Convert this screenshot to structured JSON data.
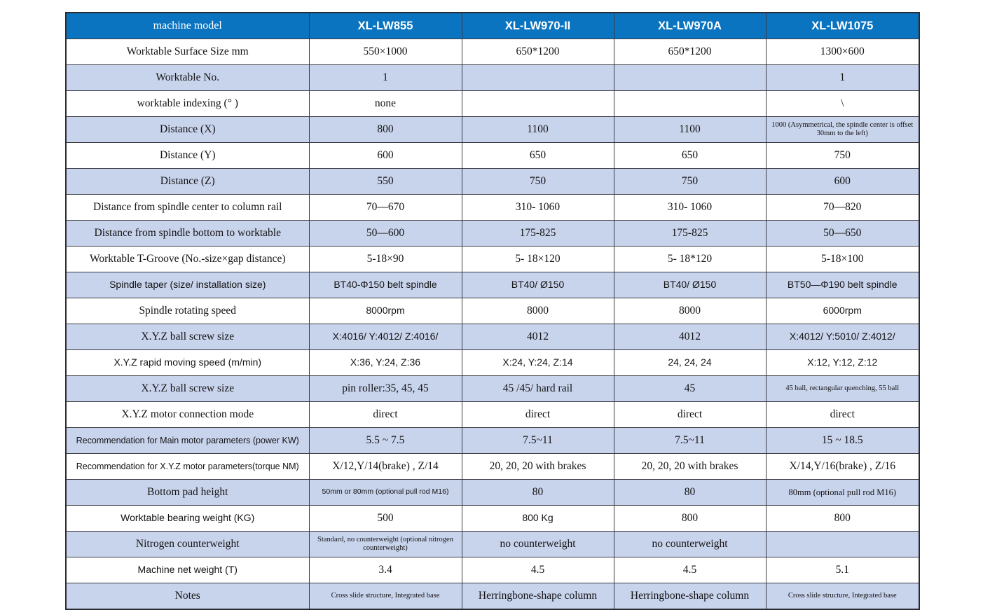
{
  "colors": {
    "header_bg": "#0a74c0",
    "header_text": "#ffffff",
    "row_alt_bg": "#c8d3ec",
    "row_bg": "#ffffff",
    "border": "#3a3a44",
    "text": "#141414"
  },
  "table": {
    "columns": [
      "machine model",
      "XL-LW855",
      "XL-LW970-II",
      "XL-LW970A",
      "XL-LW1075"
    ],
    "rows": [
      {
        "label": "Worktable Surface Size mm",
        "values": [
          "550×1000",
          "650*1200",
          "650*1200",
          "1300×600"
        ]
      },
      {
        "label": "Worktable No.",
        "values": [
          "1",
          "",
          "",
          "1"
        ]
      },
      {
        "label": "worktable indexing (° )",
        "values": [
          "none",
          "",
          "",
          "\\"
        ]
      },
      {
        "label": "Distance (X)",
        "values": [
          "800",
          "1100",
          "1100",
          "1000 (Asymmetrical, the spindle center is offset 30mm to the left)"
        ]
      },
      {
        "label": "Distance (Y)",
        "values": [
          "600",
          "650",
          "650",
          "750"
        ]
      },
      {
        "label": "Distance (Z)",
        "values": [
          "550",
          "750",
          "750",
          "600"
        ]
      },
      {
        "label": "Distance from spindle center to column rail",
        "values": [
          "70—670",
          "310- 1060",
          "310- 1060",
          "70—820"
        ]
      },
      {
        "label": "Distance from spindle bottom to worktable",
        "values": [
          "50—600",
          "175-825",
          "175-825",
          "50—650"
        ]
      },
      {
        "label": "Worktable T-Groove (No.-size×gap distance)",
        "values": [
          "5-18×90",
          "5- 18×120",
          "5- 18*120",
          "5-18×100"
        ]
      },
      {
        "label": "Spindle taper (size/ installation size)",
        "values": [
          "BT40-Φ150 belt spindle",
          "BT40/ Ø150",
          "BT40/ Ø150",
          "BT50—Φ190 belt spindle"
        ]
      },
      {
        "label": "Spindle rotating speed",
        "values": [
          "8000rpm",
          "8000",
          "8000",
          "6000rpm"
        ]
      },
      {
        "label": "X.Y.Z ball screw size",
        "values": [
          "X:4016/ Y:4012/ Z:4016/",
          "4012",
          "4012",
          "X:4012/ Y:5010/ Z:4012/"
        ]
      },
      {
        "label": "X.Y.Z rapid moving speed (m/min)",
        "values": [
          "X:36, Y:24, Z:36",
          "X:24, Y:24, Z:14",
          "24, 24, 24",
          "X:12, Y:12, Z:12"
        ]
      },
      {
        "label": "X.Y.Z ball screw size",
        "values": [
          "pin roller:35, 45, 45",
          "45 /45/ hard rail",
          "45",
          "45 ball, rectangular quenching, 55 ball"
        ]
      },
      {
        "label": "X.Y.Z motor connection mode",
        "values": [
          "direct",
          "direct",
          "direct",
          "direct"
        ]
      },
      {
        "label": "Recommendation for Main motor parameters (power KW)",
        "values": [
          "5.5 ~ 7.5",
          "7.5~11",
          "7.5~11",
          "15 ~ 18.5"
        ]
      },
      {
        "label": "Recommendation for X.Y.Z motor parameters(torque NM)",
        "values": [
          "X/12,Y/14(brake) , Z/14",
          "20, 20, 20 with brakes",
          "20, 20, 20 with brakes",
          "X/14,Y/16(brake) , Z/16"
        ]
      },
      {
        "label": "Bottom pad height",
        "values": [
          "50mm or 80mm (optional pull rod M16)",
          "80",
          "80",
          "80mm (optional pull rod M16)"
        ]
      },
      {
        "label": "Worktable bearing weight (KG)",
        "values": [
          "500",
          "800 Kg",
          "800",
          "800"
        ]
      },
      {
        "label": "Nitrogen counterweight",
        "values": [
          "Standard, no counterweight (optional nitrogen counterweight)",
          "no counterweight",
          "no counterweight",
          ""
        ]
      },
      {
        "label": "Machine net weight (T)",
        "values": [
          "3.4",
          "4.5",
          "4.5",
          "5.1"
        ]
      },
      {
        "label": "Notes",
        "values": [
          "Cross slide structure, Integrated base",
          "Herringbone-shape column",
          "Herringbone-shape column",
          "Cross slide structure, Integrated base"
        ]
      }
    ]
  }
}
